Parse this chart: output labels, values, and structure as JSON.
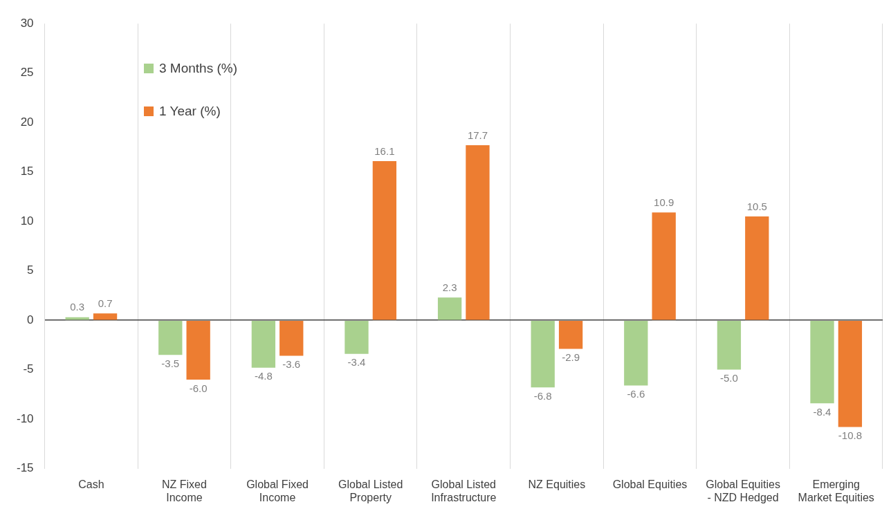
{
  "chart_data": {
    "type": "bar",
    "categories": [
      "Cash",
      "NZ Fixed Income",
      "Global Fixed Income",
      "Global Listed Property",
      "Global Listed Infrastructure",
      "NZ Equities",
      "Global Equities",
      "Global Equities - NZD Hedged",
      "Emerging Market Equities"
    ],
    "series": [
      {
        "name": "3 Months (%)",
        "color": "#a9d18e",
        "values": [
          0.3,
          -3.5,
          -4.8,
          -3.4,
          2.3,
          -6.8,
          -6.6,
          -5.0,
          -8.4
        ],
        "value_labels": [
          "0.3",
          "-3.5",
          "-4.8",
          "-3.4",
          "2.3",
          "-6.8",
          "-6.6",
          "-5.0",
          "-8.4"
        ]
      },
      {
        "name": "1 Year (%)",
        "color": "#ed7d31",
        "values": [
          0.7,
          -6.0,
          -3.6,
          16.1,
          17.7,
          -2.9,
          10.9,
          10.5,
          -10.8
        ],
        "value_labels": [
          "0.7",
          "-6.0",
          "-3.6",
          "16.1",
          "17.7",
          "-2.9",
          "10.9",
          "10.5",
          "-10.8"
        ]
      }
    ],
    "ylim": [
      -15,
      30
    ],
    "yticks": [
      -15,
      -10,
      -5,
      0,
      5,
      10,
      15,
      20,
      25,
      30
    ],
    "grid": "x",
    "legend": "top left"
  }
}
